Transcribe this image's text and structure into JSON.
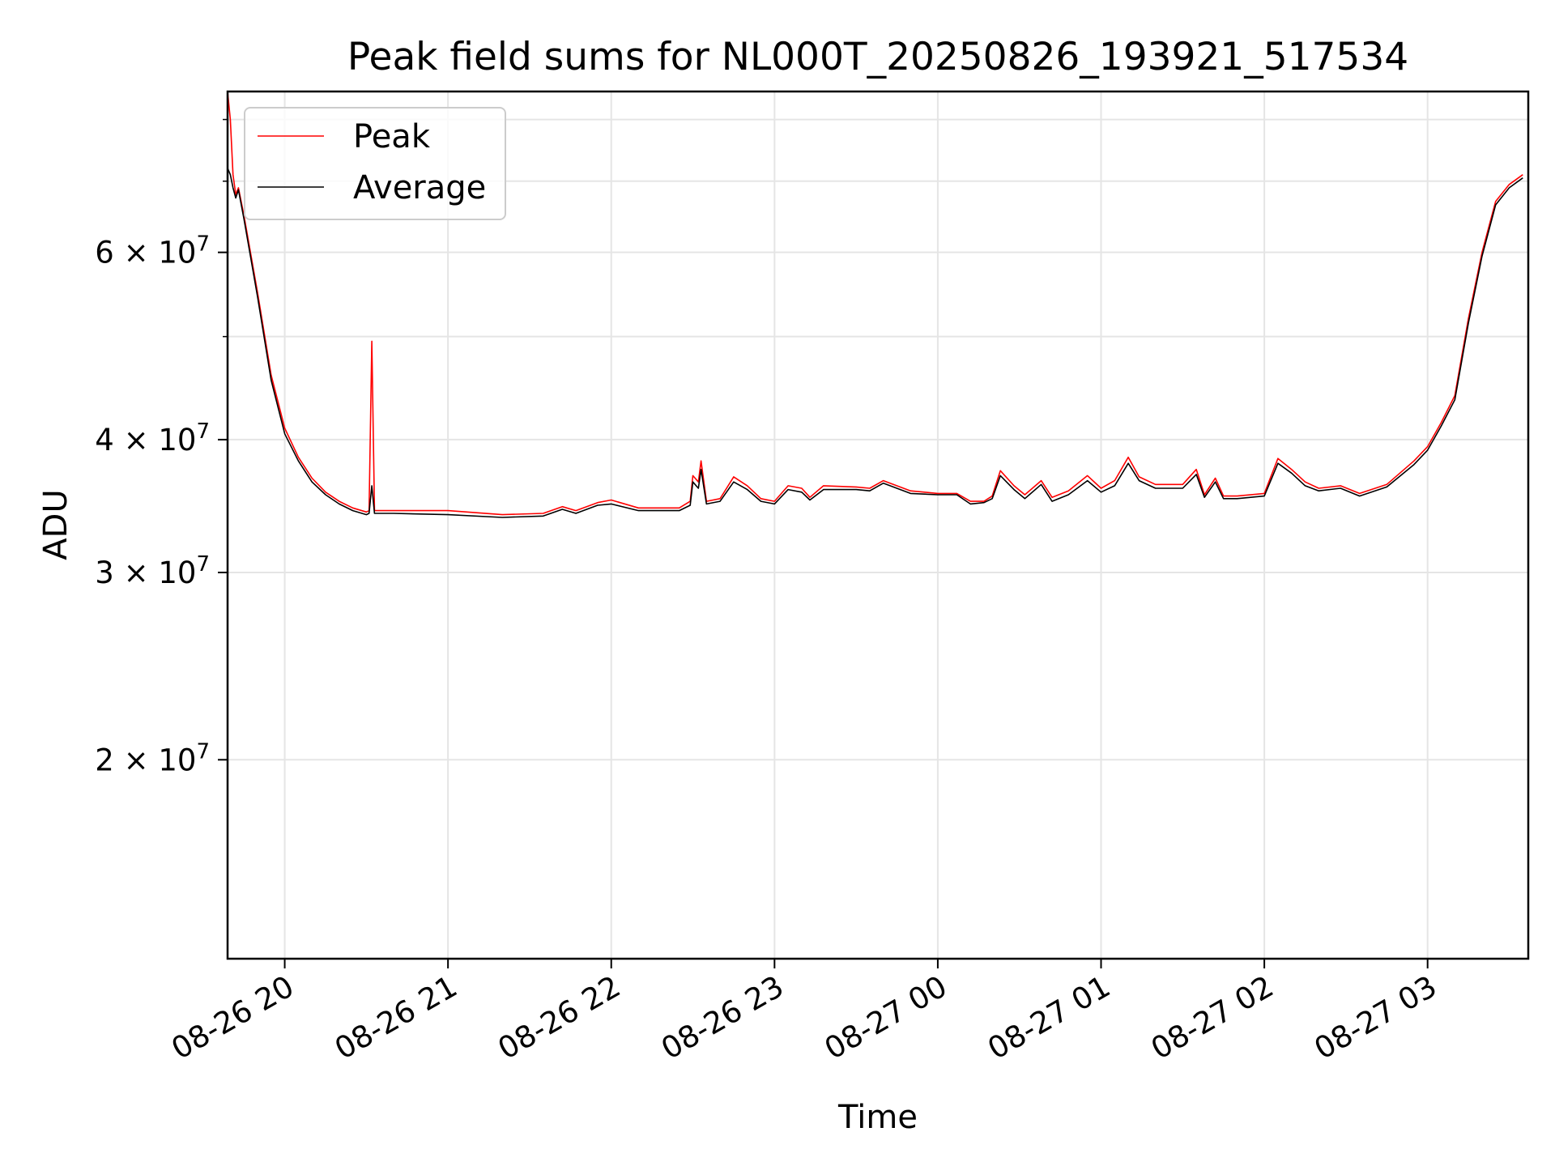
{
  "chart_data": {
    "type": "line",
    "title": "Peak field sums for NL000T_20250826_193921_517534",
    "xlabel": "Time",
    "ylabel": "ADU",
    "y_scale": "log",
    "xlim": [
      "2025-08-26 19:39",
      "2025-08-27 03:37"
    ],
    "ylim": [
      13000000,
      85000000
    ],
    "grid": true,
    "legend": {
      "placement": "top-left",
      "entries": [
        "Peak",
        "Average"
      ]
    },
    "x_ticks": [
      {
        "time": "2025-08-26 20:00",
        "label": "08-26 20"
      },
      {
        "time": "2025-08-26 21:00",
        "label": "08-26 21"
      },
      {
        "time": "2025-08-26 22:00",
        "label": "08-26 22"
      },
      {
        "time": "2025-08-26 23:00",
        "label": "08-26 23"
      },
      {
        "time": "2025-08-27 00:00",
        "label": "08-27 00"
      },
      {
        "time": "2025-08-27 01:00",
        "label": "08-27 01"
      },
      {
        "time": "2025-08-27 02:00",
        "label": "08-27 02"
      },
      {
        "time": "2025-08-27 03:00",
        "label": "08-27 03"
      }
    ],
    "y_ticks": [
      {
        "value": 20000000,
        "mantissa": "2",
        "exp": "7"
      },
      {
        "value": 30000000,
        "mantissa": "3",
        "exp": "7"
      },
      {
        "value": 40000000,
        "mantissa": "4",
        "exp": "7"
      },
      {
        "value": 60000000,
        "mantissa": "6",
        "exp": "7"
      }
    ],
    "y_minor_ticks": [
      50000000,
      70000000,
      80000000
    ],
    "series": [
      {
        "name": "Peak",
        "color": "#ff0000",
        "points": [
          [
            "2025-08-26 19:39",
            85000000
          ],
          [
            "2025-08-26 19:40",
            80000000
          ],
          [
            "2025-08-26 19:41",
            71000000
          ],
          [
            "2025-08-26 19:42",
            68000000
          ],
          [
            "2025-08-26 19:43",
            69000000
          ],
          [
            "2025-08-26 19:45",
            65000000
          ],
          [
            "2025-08-26 19:50",
            55000000
          ],
          [
            "2025-08-26 19:55",
            46000000
          ],
          [
            "2025-08-26 20:00",
            41000000
          ],
          [
            "2025-08-26 20:05",
            38500000
          ],
          [
            "2025-08-26 20:10",
            36800000
          ],
          [
            "2025-08-26 20:15",
            35700000
          ],
          [
            "2025-08-26 20:20",
            35000000
          ],
          [
            "2025-08-26 20:25",
            34500000
          ],
          [
            "2025-08-26 20:30",
            34200000
          ],
          [
            "2025-08-26 20:31",
            34300000
          ],
          [
            "2025-08-26 20:32",
            49500000
          ],
          [
            "2025-08-26 20:33",
            34300000
          ],
          [
            "2025-08-26 20:40",
            34300000
          ],
          [
            "2025-08-26 21:00",
            34300000
          ],
          [
            "2025-08-26 21:20",
            34000000
          ],
          [
            "2025-08-26 21:35",
            34100000
          ],
          [
            "2025-08-26 21:42",
            34600000
          ],
          [
            "2025-08-26 21:47",
            34300000
          ],
          [
            "2025-08-26 21:55",
            34900000
          ],
          [
            "2025-08-26 22:00",
            35100000
          ],
          [
            "2025-08-26 22:10",
            34500000
          ],
          [
            "2025-08-26 22:25",
            34500000
          ],
          [
            "2025-08-26 22:29",
            35000000
          ],
          [
            "2025-08-26 22:30",
            37000000
          ],
          [
            "2025-08-26 22:32",
            36500000
          ],
          [
            "2025-08-26 22:33",
            38200000
          ],
          [
            "2025-08-26 22:35",
            35000000
          ],
          [
            "2025-08-26 22:40",
            35200000
          ],
          [
            "2025-08-26 22:45",
            36900000
          ],
          [
            "2025-08-26 22:50",
            36200000
          ],
          [
            "2025-08-26 22:55",
            35200000
          ],
          [
            "2025-08-26 23:00",
            35000000
          ],
          [
            "2025-08-26 23:05",
            36200000
          ],
          [
            "2025-08-26 23:10",
            36000000
          ],
          [
            "2025-08-26 23:13",
            35300000
          ],
          [
            "2025-08-26 23:18",
            36200000
          ],
          [
            "2025-08-26 23:30",
            36100000
          ],
          [
            "2025-08-26 23:35",
            36000000
          ],
          [
            "2025-08-26 23:40",
            36600000
          ],
          [
            "2025-08-26 23:50",
            35800000
          ],
          [
            "2025-08-27 00:00",
            35600000
          ],
          [
            "2025-08-27 00:07",
            35600000
          ],
          [
            "2025-08-27 00:12",
            35000000
          ],
          [
            "2025-08-27 00:17",
            35000000
          ],
          [
            "2025-08-27 00:20",
            35400000
          ],
          [
            "2025-08-27 00:23",
            37400000
          ],
          [
            "2025-08-27 00:28",
            36200000
          ],
          [
            "2025-08-27 00:32",
            35500000
          ],
          [
            "2025-08-27 00:38",
            36600000
          ],
          [
            "2025-08-27 00:42",
            35300000
          ],
          [
            "2025-08-27 00:48",
            35800000
          ],
          [
            "2025-08-27 00:55",
            37000000
          ],
          [
            "2025-08-27 01:00",
            36000000
          ],
          [
            "2025-08-27 01:05",
            36600000
          ],
          [
            "2025-08-27 01:10",
            38500000
          ],
          [
            "2025-08-27 01:14",
            36900000
          ],
          [
            "2025-08-27 01:20",
            36300000
          ],
          [
            "2025-08-27 01:30",
            36300000
          ],
          [
            "2025-08-27 01:35",
            37500000
          ],
          [
            "2025-08-27 01:38",
            35500000
          ],
          [
            "2025-08-27 01:42",
            36800000
          ],
          [
            "2025-08-27 01:45",
            35400000
          ],
          [
            "2025-08-27 01:50",
            35400000
          ],
          [
            "2025-08-27 02:00",
            35600000
          ],
          [
            "2025-08-27 02:05",
            38400000
          ],
          [
            "2025-08-27 02:10",
            37500000
          ],
          [
            "2025-08-27 02:15",
            36500000
          ],
          [
            "2025-08-27 02:20",
            36000000
          ],
          [
            "2025-08-27 02:28",
            36200000
          ],
          [
            "2025-08-27 02:35",
            35600000
          ],
          [
            "2025-08-27 02:45",
            36300000
          ],
          [
            "2025-08-27 02:55",
            38200000
          ],
          [
            "2025-08-27 03:00",
            39400000
          ],
          [
            "2025-08-27 03:05",
            41500000
          ],
          [
            "2025-08-27 03:10",
            44000000
          ],
          [
            "2025-08-27 03:15",
            52000000
          ],
          [
            "2025-08-27 03:20",
            60000000
          ],
          [
            "2025-08-27 03:25",
            67000000
          ],
          [
            "2025-08-27 03:30",
            69500000
          ],
          [
            "2025-08-27 03:35",
            71000000
          ]
        ]
      },
      {
        "name": "Average",
        "color": "#000000",
        "points": [
          [
            "2025-08-26 19:39",
            72000000
          ],
          [
            "2025-08-26 19:40",
            71000000
          ],
          [
            "2025-08-26 19:41",
            69000000
          ],
          [
            "2025-08-26 19:42",
            67500000
          ],
          [
            "2025-08-26 19:43",
            68700000
          ],
          [
            "2025-08-26 19:45",
            64500000
          ],
          [
            "2025-08-26 19:50",
            54500000
          ],
          [
            "2025-08-26 19:55",
            45500000
          ],
          [
            "2025-08-26 20:00",
            40500000
          ],
          [
            "2025-08-26 20:05",
            38200000
          ],
          [
            "2025-08-26 20:10",
            36500000
          ],
          [
            "2025-08-26 20:15",
            35500000
          ],
          [
            "2025-08-26 20:20",
            34800000
          ],
          [
            "2025-08-26 20:25",
            34300000
          ],
          [
            "2025-08-26 20:30",
            34000000
          ],
          [
            "2025-08-26 20:31",
            34100000
          ],
          [
            "2025-08-26 20:32",
            36200000
          ],
          [
            "2025-08-26 20:33",
            34100000
          ],
          [
            "2025-08-26 20:40",
            34100000
          ],
          [
            "2025-08-26 21:00",
            34000000
          ],
          [
            "2025-08-26 21:20",
            33800000
          ],
          [
            "2025-08-26 21:35",
            33900000
          ],
          [
            "2025-08-26 21:42",
            34400000
          ],
          [
            "2025-08-26 21:47",
            34100000
          ],
          [
            "2025-08-26 21:55",
            34700000
          ],
          [
            "2025-08-26 22:00",
            34800000
          ],
          [
            "2025-08-26 22:10",
            34300000
          ],
          [
            "2025-08-26 22:25",
            34300000
          ],
          [
            "2025-08-26 22:29",
            34700000
          ],
          [
            "2025-08-26 22:30",
            36500000
          ],
          [
            "2025-08-26 22:32",
            36000000
          ],
          [
            "2025-08-26 22:33",
            37500000
          ],
          [
            "2025-08-26 22:35",
            34800000
          ],
          [
            "2025-08-26 22:40",
            35000000
          ],
          [
            "2025-08-26 22:45",
            36500000
          ],
          [
            "2025-08-26 22:50",
            35900000
          ],
          [
            "2025-08-26 22:55",
            35000000
          ],
          [
            "2025-08-26 23:00",
            34800000
          ],
          [
            "2025-08-26 23:05",
            35900000
          ],
          [
            "2025-08-26 23:10",
            35700000
          ],
          [
            "2025-08-26 23:13",
            35100000
          ],
          [
            "2025-08-26 23:18",
            35900000
          ],
          [
            "2025-08-26 23:30",
            35900000
          ],
          [
            "2025-08-26 23:35",
            35800000
          ],
          [
            "2025-08-26 23:40",
            36400000
          ],
          [
            "2025-08-26 23:50",
            35600000
          ],
          [
            "2025-08-27 00:00",
            35500000
          ],
          [
            "2025-08-27 00:07",
            35500000
          ],
          [
            "2025-08-27 00:12",
            34800000
          ],
          [
            "2025-08-27 00:17",
            34900000
          ],
          [
            "2025-08-27 00:20",
            35200000
          ],
          [
            "2025-08-27 00:23",
            37000000
          ],
          [
            "2025-08-27 00:28",
            35900000
          ],
          [
            "2025-08-27 00:32",
            35200000
          ],
          [
            "2025-08-27 00:38",
            36300000
          ],
          [
            "2025-08-27 00:42",
            35000000
          ],
          [
            "2025-08-27 00:48",
            35500000
          ],
          [
            "2025-08-27 00:55",
            36600000
          ],
          [
            "2025-08-27 01:00",
            35700000
          ],
          [
            "2025-08-27 01:05",
            36200000
          ],
          [
            "2025-08-27 01:10",
            38000000
          ],
          [
            "2025-08-27 01:14",
            36600000
          ],
          [
            "2025-08-27 01:20",
            36000000
          ],
          [
            "2025-08-27 01:30",
            36000000
          ],
          [
            "2025-08-27 01:35",
            37100000
          ],
          [
            "2025-08-27 01:38",
            35300000
          ],
          [
            "2025-08-27 01:42",
            36500000
          ],
          [
            "2025-08-27 01:45",
            35200000
          ],
          [
            "2025-08-27 01:50",
            35200000
          ],
          [
            "2025-08-27 02:00",
            35400000
          ],
          [
            "2025-08-27 02:05",
            38000000
          ],
          [
            "2025-08-27 02:10",
            37200000
          ],
          [
            "2025-08-27 02:15",
            36200000
          ],
          [
            "2025-08-27 02:20",
            35800000
          ],
          [
            "2025-08-27 02:28",
            36000000
          ],
          [
            "2025-08-27 02:35",
            35400000
          ],
          [
            "2025-08-27 02:45",
            36100000
          ],
          [
            "2025-08-27 02:55",
            37900000
          ],
          [
            "2025-08-27 03:00",
            39100000
          ],
          [
            "2025-08-27 03:05",
            41200000
          ],
          [
            "2025-08-27 03:10",
            43600000
          ],
          [
            "2025-08-27 03:15",
            51500000
          ],
          [
            "2025-08-27 03:20",
            59500000
          ],
          [
            "2025-08-27 03:25",
            66500000
          ],
          [
            "2025-08-27 03:30",
            69000000
          ],
          [
            "2025-08-27 03:35",
            70500000
          ]
        ]
      }
    ]
  }
}
